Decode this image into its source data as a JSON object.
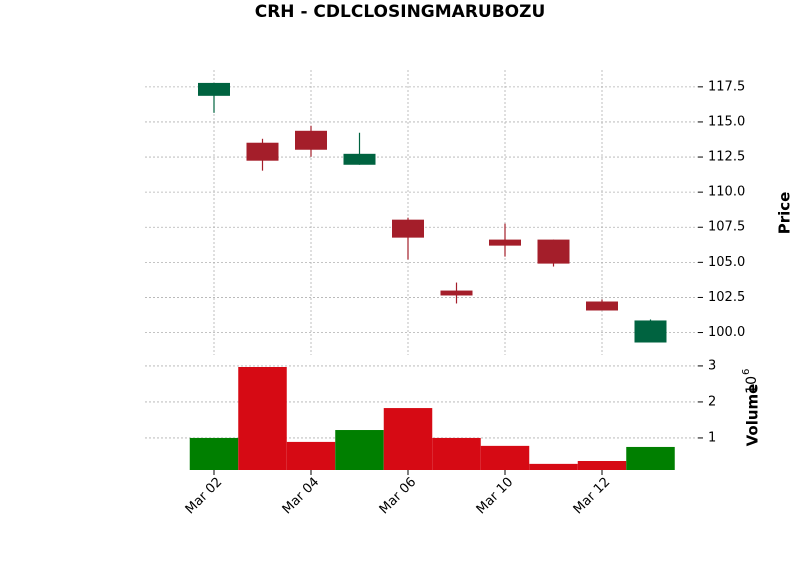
{
  "chart_data": {
    "type": "candlestick",
    "title": "CRH - CDLCLOSINGMARUBOZU",
    "categories": [
      "Mar 02",
      null,
      "Mar 04",
      null,
      "Mar 06",
      null,
      "Mar 10",
      null,
      "Mar 12",
      null
    ],
    "open": [
      116.86,
      113.52,
      114.37,
      111.95,
      108.04,
      102.99,
      106.62,
      106.62,
      102.21,
      99.29
    ],
    "high": [
      117.78,
      113.8,
      114.73,
      114.23,
      108.18,
      103.56,
      107.76,
      106.62,
      102.35,
      100.93
    ],
    "low": [
      115.65,
      111.53,
      112.52,
      111.95,
      105.2,
      102.07,
      105.41,
      104.7,
      101.57,
      99.29
    ],
    "close": [
      117.78,
      112.24,
      113.02,
      112.73,
      106.76,
      102.64,
      106.19,
      104.91,
      101.57,
      100.86
    ],
    "up_color": "#006340",
    "down_color": "#a41e2a",
    "ylabel": "Price",
    "ylim": [
      98.4,
      118.7
    ],
    "yticks": [
      {
        "value": 100,
        "label": "100.0"
      },
      102.5,
      {
        "value": 105,
        "label": "105.0"
      },
      107.5,
      {
        "value": 110,
        "label": "110.0"
      },
      112.5,
      {
        "value": 115,
        "label": "115.0"
      },
      117.5
    ],
    "grid": true,
    "volume": {
      "values": [
        1.0,
        2.97,
        0.89,
        1.22,
        1.83,
        1.0,
        0.78,
        0.28,
        0.36,
        0.75
      ],
      "up_color": "#007f00",
      "down_color": "#d60a14",
      "ylabel": "Volume",
      "ylim": [
        0.11,
        3.22
      ],
      "yticks": [
        1,
        2,
        3
      ],
      "offset": {
        "base": "10",
        "exponent": "6"
      }
    }
  }
}
